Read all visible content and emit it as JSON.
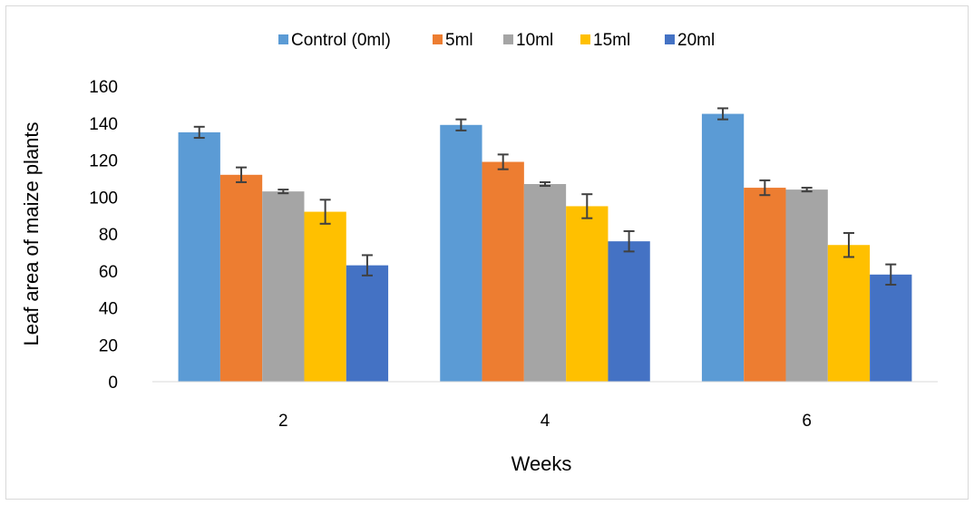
{
  "chart_data": {
    "type": "bar",
    "title": "",
    "xlabel": "Weeks",
    "ylabel": "Leaf area of maize plants",
    "categories": [
      "2",
      "4",
      "6"
    ],
    "ylim": [
      0,
      160
    ],
    "yticks": [
      0,
      20,
      40,
      60,
      80,
      100,
      120,
      140,
      160
    ],
    "grid": false,
    "legend_position": "top",
    "series": [
      {
        "name": "Control (0ml)",
        "color": "#5b9bd5",
        "values": [
          135,
          139,
          145
        ],
        "errors": [
          3,
          3,
          3
        ]
      },
      {
        "name": "5ml",
        "color": "#ed7d31",
        "values": [
          112,
          119,
          105
        ],
        "errors": [
          4,
          4,
          4
        ]
      },
      {
        "name": "10ml",
        "color": "#a5a5a5",
        "values": [
          103,
          107,
          104
        ],
        "errors": [
          1,
          1,
          1
        ]
      },
      {
        "name": "15ml",
        "color": "#ffc000",
        "values": [
          92,
          95,
          74
        ],
        "errors": [
          6.5,
          6.5,
          6.5
        ]
      },
      {
        "name": "20ml",
        "color": "#4472c4",
        "values": [
          63,
          76,
          58
        ],
        "errors": [
          5.5,
          5.5,
          5.5
        ]
      }
    ]
  }
}
